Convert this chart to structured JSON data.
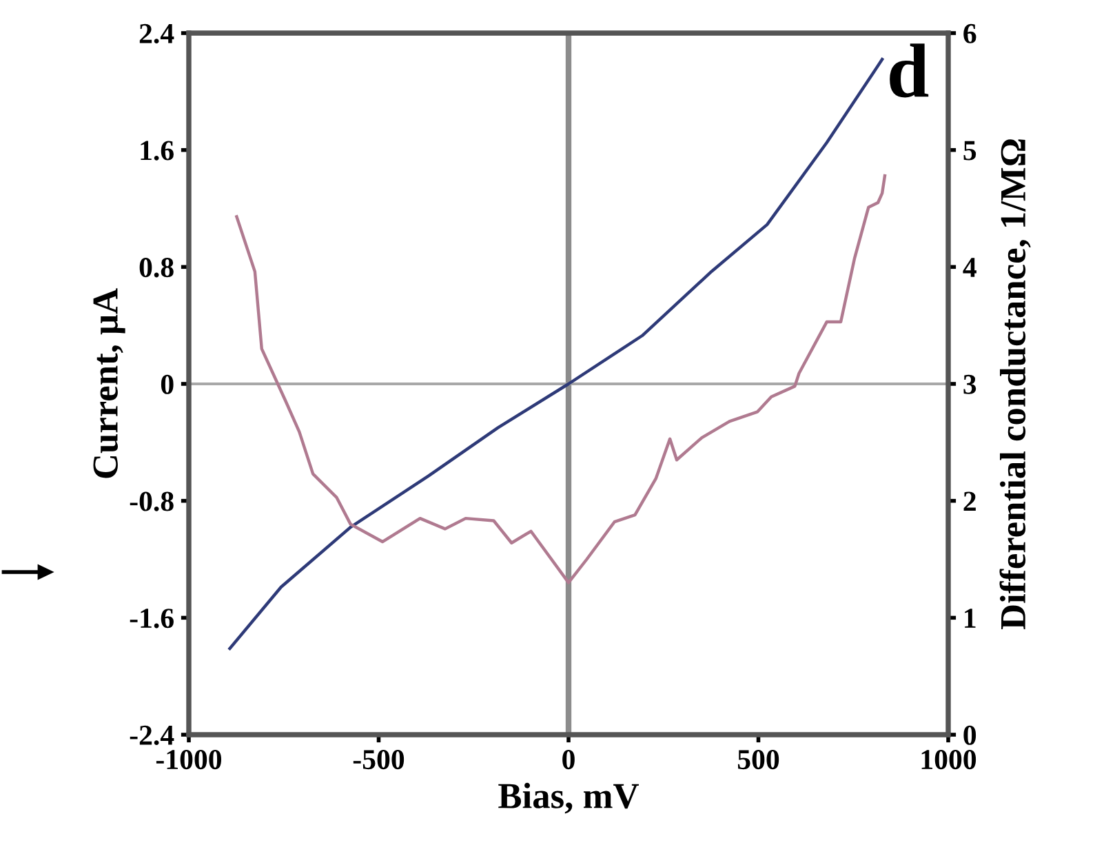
{
  "chart_data": {
    "type": "line",
    "xlabel": "Bias, mV",
    "ylabel": "Current, μA",
    "y2label": "Differential conductance, 1/MΩ",
    "annotations": [
      "d"
    ],
    "xlim": [
      -1000,
      1000
    ],
    "xticks": [
      -1000,
      -500,
      0,
      500,
      1000
    ],
    "ylim": [
      -2.4,
      2.4
    ],
    "yticks": [
      -2.4,
      -1.6,
      -0.8,
      0,
      0.8,
      1.6,
      2.4
    ],
    "y2lim": [
      0,
      6
    ],
    "y2ticks": [
      0,
      1,
      2,
      3,
      4,
      5,
      6
    ],
    "grid": false,
    "legend": false,
    "marker": "none",
    "line_style": "solid",
    "ref_lines": [
      {
        "axis": "x",
        "value": 0,
        "color": "#8c8c8c"
      },
      {
        "axis": "y",
        "value": 0,
        "color": "#a8a8a8"
      }
    ],
    "series": [
      {
        "color": "#2e3a78",
        "x": [
          -892,
          -757,
          -574,
          -369,
          -186,
          0,
          194,
          377,
          523,
          680,
          826
        ],
        "values": [
          -1.81,
          -1.39,
          -0.98,
          -0.63,
          -0.3,
          0,
          0.33,
          0.77,
          1.09,
          1.65,
          2.22
        ]
      },
      {
        "color": "#b07a90",
        "axis": "y2",
        "x": [
          -874,
          -826,
          -808,
          -746,
          -709,
          -673,
          -611,
          -574,
          -490,
          -391,
          -325,
          -271,
          -197,
          -150,
          -99,
          0,
          48,
          121,
          175,
          230,
          267,
          285,
          351,
          424,
          497,
          534,
          596,
          607,
          680,
          717,
          753,
          790,
          815,
          826,
          833
        ],
        "values": [
          4.43,
          3.96,
          3.3,
          2.86,
          2.59,
          2.23,
          2.03,
          1.8,
          1.65,
          1.85,
          1.76,
          1.85,
          1.83,
          1.64,
          1.74,
          1.3,
          1.5,
          1.82,
          1.88,
          2.19,
          2.53,
          2.35,
          2.54,
          2.68,
          2.76,
          2.89,
          2.98,
          3.09,
          3.53,
          3.53,
          4.07,
          4.51,
          4.55,
          4.63,
          4.78
        ]
      }
    ]
  }
}
